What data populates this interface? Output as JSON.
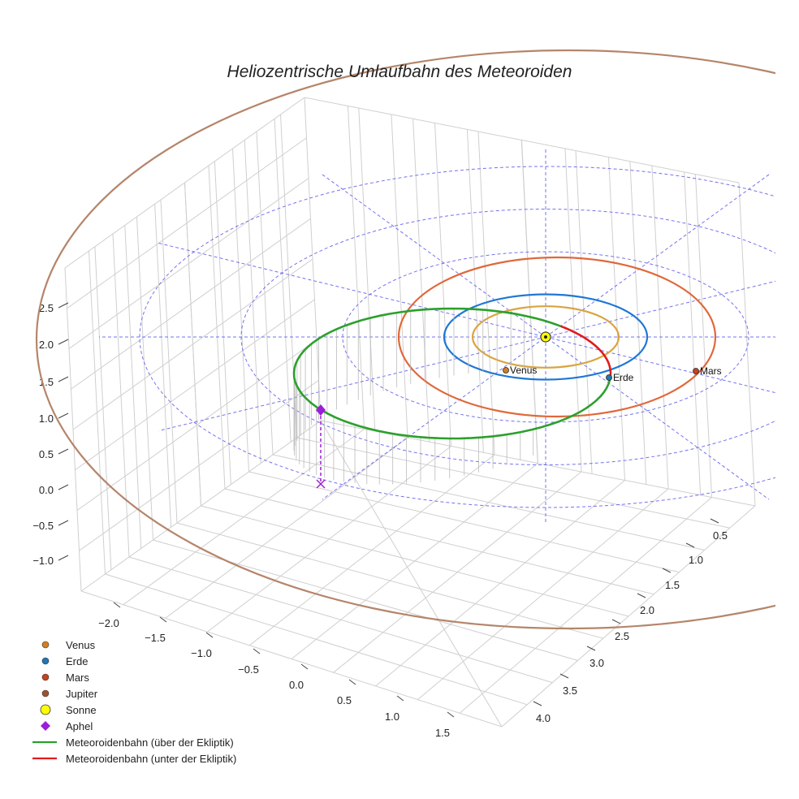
{
  "chart_data": {
    "type": "line",
    "title": "Heliozentrische Umlaufbahn des Meteoroiden",
    "xlabel": "",
    "ylabel": "",
    "zlabel": "",
    "x_ticks": [
      "−2.0",
      "−1.5",
      "−1.0",
      "−0.5",
      "0.0",
      "0.5",
      "1.0",
      "1.5"
    ],
    "y_ticks": [
      "0.5",
      "1.0",
      "1.5",
      "2.0",
      "2.5",
      "3.0",
      "3.5",
      "4.0"
    ],
    "z_ticks": [
      "2.5",
      "2.0",
      "1.5",
      "1.0",
      "0.5",
      "0.0",
      "−0.5",
      "−1.0"
    ],
    "grid": true,
    "legend_position": "bottom-left",
    "planet_orbits": [
      {
        "name": "Venus",
        "radius_au": 0.72,
        "color": "#d9a441"
      },
      {
        "name": "Erde",
        "radius_au": 1.0,
        "color": "#1f77d4"
      },
      {
        "name": "Mars",
        "radius_au": 1.52,
        "color": "#e0683a"
      },
      {
        "name": "Jupiter",
        "radius_au": 5.2,
        "color": "#b5856a"
      }
    ],
    "planet_labels": [
      {
        "name": "Venus"
      },
      {
        "name": "Erde"
      },
      {
        "name": "Mars"
      }
    ],
    "meteoroid_orbit": {
      "perihelion_au": 0.0,
      "aphelion_au": 2.5,
      "color_above": "#2ca02c",
      "color_below": "#e31a1c"
    },
    "aphelion_marker": {
      "label": "Aphel",
      "color": "#9b1fd6",
      "height": 0.6
    },
    "sun": {
      "label": "Sonne",
      "color": "#ffff00"
    },
    "reference_grid": {
      "rings_au": [
        1,
        2,
        3,
        4
      ],
      "color": "#5b5bef"
    },
    "legend": [
      {
        "label": "Venus",
        "kind": "dot",
        "color": "#d47f1f"
      },
      {
        "label": "Erde",
        "kind": "dot",
        "color": "#1f77b4"
      },
      {
        "label": "Mars",
        "kind": "dot",
        "color": "#c8421c"
      },
      {
        "label": "Jupiter",
        "kind": "dot",
        "color": "#a0522d"
      },
      {
        "label": "Sonne",
        "kind": "sun",
        "color": "#ffff00"
      },
      {
        "label": "Aphel",
        "kind": "diamond",
        "color": "#9b1fd6"
      },
      {
        "label": "Meteoroidenbahn (über der Ekliptik)",
        "kind": "line",
        "color": "#2ca02c"
      },
      {
        "label": "Meteoroidenbahn (unter der Ekliptik)",
        "kind": "line",
        "color": "#e31a1c"
      }
    ]
  }
}
